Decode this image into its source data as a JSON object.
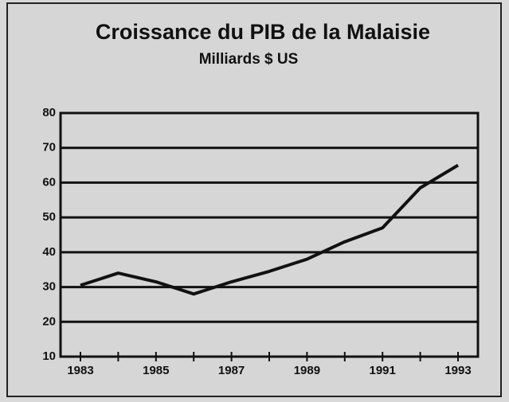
{
  "chart_data": {
    "type": "line",
    "title": "Croissance du PIB de la Malaisie",
    "subtitle": "Milliards $ US",
    "categories": [
      "1983",
      null,
      "1985",
      null,
      "1987",
      null,
      "1989",
      null,
      "1991",
      null,
      "1993"
    ],
    "series": [
      {
        "name": "PIB",
        "color": "#111111",
        "values": [
          30.5,
          34,
          31.5,
          28,
          31.5,
          34.5,
          38,
          43,
          47,
          58.5,
          65
        ]
      }
    ],
    "ylim": [
      10,
      80
    ],
    "yticks": [
      10,
      20,
      30,
      40,
      50,
      60,
      70,
      80
    ],
    "grid": true
  }
}
